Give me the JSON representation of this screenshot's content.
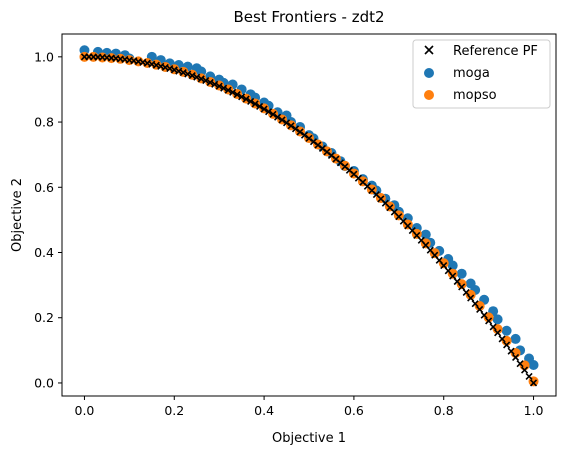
{
  "chart_data": {
    "type": "scatter",
    "title": "Best Frontiers - zdt2",
    "xlabel": "Objective 1",
    "ylabel": "Objective 2",
    "xlim": [
      -0.05,
      1.05
    ],
    "ylim": [
      -0.04,
      1.07
    ],
    "xticks": [
      "0.0",
      "0.2",
      "0.4",
      "0.6",
      "0.8",
      "1.0"
    ],
    "yticks": [
      "0.0",
      "0.2",
      "0.4",
      "0.6",
      "0.8",
      "1.0"
    ],
    "xtick_values": [
      0,
      0.2,
      0.4,
      0.6,
      0.8,
      1.0
    ],
    "ytick_values": [
      0,
      0.2,
      0.4,
      0.6,
      0.8,
      1.0
    ],
    "grid": false,
    "legend_position": "top-right",
    "series": [
      {
        "name": "Reference PF",
        "marker": "x",
        "color": "#000000",
        "x": [
          0,
          0.01,
          0.02,
          0.03,
          0.04,
          0.05,
          0.06,
          0.07,
          0.08,
          0.09,
          0.1,
          0.11,
          0.12,
          0.13,
          0.14,
          0.15,
          0.16,
          0.17,
          0.18,
          0.19,
          0.2,
          0.21,
          0.22,
          0.23,
          0.24,
          0.25,
          0.26,
          0.27,
          0.28,
          0.29,
          0.3,
          0.31,
          0.32,
          0.33,
          0.34,
          0.35,
          0.36,
          0.37,
          0.38,
          0.39,
          0.4,
          0.41,
          0.42,
          0.43,
          0.44,
          0.45,
          0.46,
          0.47,
          0.48,
          0.49,
          0.5,
          0.51,
          0.52,
          0.53,
          0.54,
          0.55,
          0.56,
          0.57,
          0.58,
          0.59,
          0.6,
          0.61,
          0.62,
          0.63,
          0.64,
          0.65,
          0.66,
          0.67,
          0.68,
          0.69,
          0.7,
          0.71,
          0.72,
          0.73,
          0.74,
          0.75,
          0.76,
          0.77,
          0.78,
          0.79,
          0.8,
          0.81,
          0.82,
          0.83,
          0.84,
          0.85,
          0.86,
          0.87,
          0.88,
          0.89,
          0.9,
          0.91,
          0.92,
          0.93,
          0.94,
          0.95,
          0.96,
          0.97,
          0.98,
          0.99,
          1.0
        ],
        "y": [
          1,
          0.9999,
          0.9996,
          0.9991,
          0.9984,
          0.9975,
          0.9964,
          0.9951,
          0.9936,
          0.9919,
          0.99,
          0.9879,
          0.9856,
          0.9831,
          0.9804,
          0.9775,
          0.9744,
          0.9711,
          0.9676,
          0.9639,
          0.96,
          0.9559,
          0.9516,
          0.9471,
          0.9424,
          0.9375,
          0.9324,
          0.9271,
          0.9216,
          0.9159,
          0.91,
          0.9039,
          0.8976,
          0.8911,
          0.8844,
          0.8775,
          0.8704,
          0.8631,
          0.8556,
          0.8479,
          0.84,
          0.8319,
          0.8236,
          0.8151,
          0.8064,
          0.7975,
          0.7884,
          0.7791,
          0.7696,
          0.7599,
          0.75,
          0.7399,
          0.7296,
          0.7191,
          0.7084,
          0.6975,
          0.6864,
          0.6751,
          0.6636,
          0.6519,
          0.64,
          0.6279,
          0.6156,
          0.6031,
          0.5904,
          0.5775,
          0.5644,
          0.5511,
          0.5376,
          0.5239,
          0.51,
          0.4959,
          0.4816,
          0.4671,
          0.4524,
          0.4375,
          0.4224,
          0.4071,
          0.3916,
          0.3759,
          0.36,
          0.3439,
          0.3276,
          0.3111,
          0.2944,
          0.2775,
          0.2604,
          0.2431,
          0.2256,
          0.2079,
          0.19,
          0.1719,
          0.1536,
          0.1351,
          0.1164,
          0.0975,
          0.0784,
          0.0591,
          0.0396,
          0.0199,
          0
        ]
      },
      {
        "name": "moga",
        "marker": "o",
        "color": "#1f77b4",
        "x": [
          0.0,
          0.03,
          0.05,
          0.07,
          0.09,
          0.1,
          0.15,
          0.17,
          0.19,
          0.21,
          0.23,
          0.25,
          0.26,
          0.28,
          0.3,
          0.31,
          0.33,
          0.35,
          0.37,
          0.38,
          0.4,
          0.41,
          0.43,
          0.45,
          0.46,
          0.48,
          0.5,
          0.51,
          0.53,
          0.55,
          0.57,
          0.58,
          0.6,
          0.62,
          0.64,
          0.65,
          0.67,
          0.69,
          0.7,
          0.72,
          0.74,
          0.76,
          0.77,
          0.79,
          0.81,
          0.82,
          0.84,
          0.86,
          0.87,
          0.89,
          0.91,
          0.92,
          0.94,
          0.96,
          0.97,
          0.99,
          1.0
        ],
        "y": [
          1.02,
          1.015,
          1.012,
          1.01,
          1.005,
          0.995,
          1.0,
          0.99,
          0.98,
          0.975,
          0.97,
          0.965,
          0.955,
          0.94,
          0.93,
          0.92,
          0.915,
          0.9,
          0.885,
          0.875,
          0.86,
          0.85,
          0.83,
          0.82,
          0.8,
          0.785,
          0.76,
          0.75,
          0.725,
          0.705,
          0.68,
          0.665,
          0.65,
          0.625,
          0.605,
          0.59,
          0.565,
          0.545,
          0.525,
          0.505,
          0.475,
          0.455,
          0.43,
          0.405,
          0.38,
          0.36,
          0.335,
          0.305,
          0.285,
          0.255,
          0.22,
          0.195,
          0.16,
          0.135,
          0.1,
          0.075,
          0.055
        ]
      },
      {
        "name": "mopso",
        "marker": "o",
        "color": "#ff7f0e",
        "x": [
          0.0,
          0.02,
          0.04,
          0.06,
          0.08,
          0.1,
          0.12,
          0.14,
          0.16,
          0.18,
          0.2,
          0.22,
          0.24,
          0.26,
          0.28,
          0.3,
          0.32,
          0.34,
          0.36,
          0.38,
          0.4,
          0.42,
          0.44,
          0.46,
          0.48,
          0.5,
          0.52,
          0.54,
          0.56,
          0.58,
          0.6,
          0.62,
          0.64,
          0.66,
          0.68,
          0.7,
          0.72,
          0.74,
          0.76,
          0.78,
          0.8,
          0.82,
          0.84,
          0.86,
          0.88,
          0.9,
          0.92,
          0.94,
          0.96,
          0.98,
          1.0
        ],
        "y": [
          1.0,
          1.0,
          0.998,
          0.996,
          0.994,
          0.99,
          0.986,
          0.981,
          0.976,
          0.969,
          0.962,
          0.954,
          0.945,
          0.934,
          0.923,
          0.912,
          0.9,
          0.886,
          0.872,
          0.857,
          0.842,
          0.825,
          0.808,
          0.79,
          0.771,
          0.751,
          0.731,
          0.71,
          0.688,
          0.666,
          0.642,
          0.618,
          0.593,
          0.567,
          0.541,
          0.514,
          0.486,
          0.457,
          0.428,
          0.398,
          0.367,
          0.335,
          0.303,
          0.27,
          0.236,
          0.201,
          0.165,
          0.129,
          0.092,
          0.054,
          0.005
        ]
      }
    ]
  }
}
